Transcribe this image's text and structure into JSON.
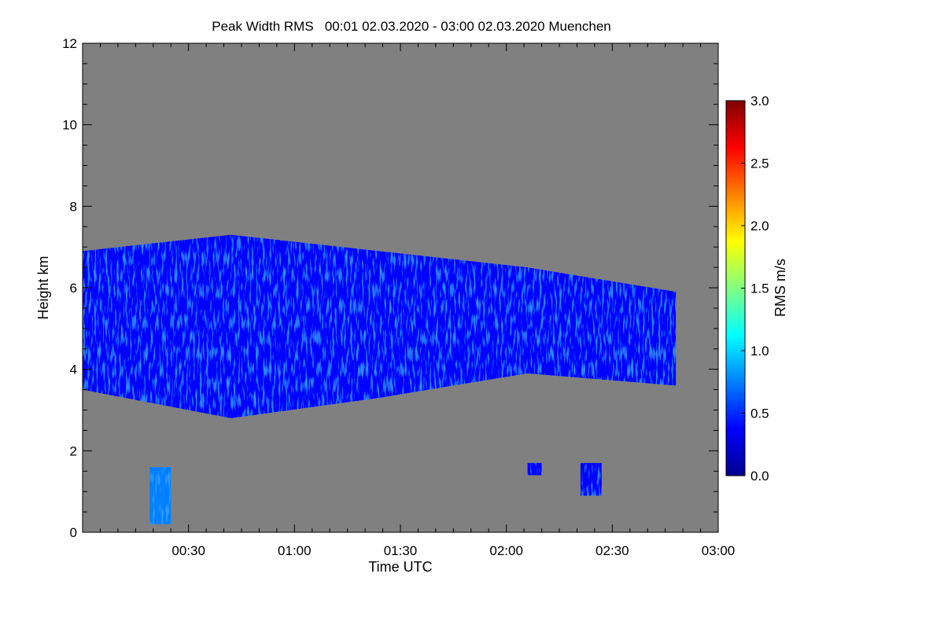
{
  "chart_data": {
    "type": "heatmap",
    "title": "Peak Width RMS   00:01 02.03.2020 - 03:00 02.03.2020 Muenchen",
    "xlabel": "Time UTC",
    "ylabel": "Height km",
    "xlim": [
      "00:00",
      "03:00"
    ],
    "ylim": [
      0,
      12
    ],
    "x_ticks": [
      "00:30",
      "01:00",
      "01:30",
      "02:00",
      "02:30",
      "03:00"
    ],
    "y_ticks": [
      "0",
      "2",
      "4",
      "6",
      "8",
      "10",
      "12"
    ],
    "background_color": "#808080",
    "colorbar": {
      "label": "RMS m/s",
      "range": [
        0.0,
        3.0
      ],
      "ticks": [
        "0.0",
        "0.5",
        "1.0",
        "1.5",
        "2.0",
        "2.5",
        "3.0"
      ],
      "colormap": [
        "#00008f",
        "#0000ff",
        "#0080ff",
        "#00ffff",
        "#80ff80",
        "#ffff00",
        "#ff8000",
        "#ff0000",
        "#800000"
      ]
    },
    "features": [
      {
        "name": "upper-echo-layer",
        "time_start": "00:00",
        "time_end": "02:48",
        "height_bottom_km": [
          3.5,
          2.8,
          3.3,
          3.9,
          3.6
        ],
        "height_top_km": [
          6.9,
          7.3,
          6.9,
          6.5,
          5.9
        ],
        "rms_typical": 0.4
      },
      {
        "name": "low-echo-streak",
        "time_start": "00:19",
        "time_end": "00:25",
        "height_bottom_km": 0.2,
        "height_top_km": 1.6,
        "rms_typical": 0.6
      },
      {
        "name": "low-echo-patch",
        "time_start": "02:06",
        "time_end": "02:10",
        "height_bottom_km": 1.4,
        "height_top_km": 1.7,
        "rms_typical": 0.3
      },
      {
        "name": "low-echo-patch",
        "time_start": "02:21",
        "time_end": "02:27",
        "height_bottom_km": 0.9,
        "height_top_km": 1.7,
        "rms_typical": 0.3
      }
    ]
  }
}
